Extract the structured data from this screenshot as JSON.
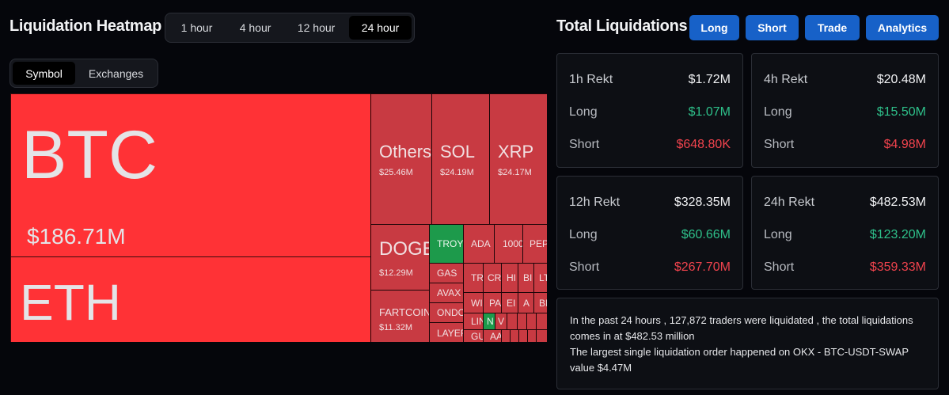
{
  "heatmap": {
    "title": "Liquidation Heatmap",
    "time_options": [
      "1 hour",
      "4 hour",
      "12 hour",
      "24 hour"
    ],
    "time_selected": "24 hour",
    "view_options": [
      "Symbol",
      "Exchanges"
    ],
    "view_selected": "Symbol"
  },
  "treemap": {
    "tiles": [
      {
        "symbol": "BTC",
        "value": "$186.71M"
      },
      {
        "symbol": "ETH",
        "value": ""
      },
      {
        "symbol": "Others",
        "value": "$25.46M"
      },
      {
        "symbol": "SOL",
        "value": "$24.19M"
      },
      {
        "symbol": "XRP",
        "value": "$24.17M"
      },
      {
        "symbol": "DOGE",
        "value": "$12.29M"
      },
      {
        "symbol": "FARTCOIN",
        "value": "$11.32M"
      },
      {
        "symbol": "TROY",
        "value": ""
      },
      {
        "symbol": "ADA",
        "value": ""
      },
      {
        "symbol": "1000",
        "value": ""
      },
      {
        "symbol": "PEP",
        "value": ""
      },
      {
        "symbol": "GAS",
        "value": ""
      },
      {
        "symbol": "AVAX",
        "value": ""
      },
      {
        "symbol": "ONDO",
        "value": ""
      },
      {
        "symbol": "LAYER",
        "value": ""
      },
      {
        "symbol": "TR",
        "value": ""
      },
      {
        "symbol": "CR",
        "value": ""
      },
      {
        "symbol": "HI",
        "value": ""
      },
      {
        "symbol": "BI",
        "value": ""
      },
      {
        "symbol": "LT",
        "value": ""
      },
      {
        "symbol": "WIF",
        "value": ""
      },
      {
        "symbol": "PA",
        "value": ""
      },
      {
        "symbol": "EI",
        "value": ""
      },
      {
        "symbol": "A",
        "value": ""
      },
      {
        "symbol": "BI",
        "value": ""
      },
      {
        "symbol": "LIN",
        "value": ""
      },
      {
        "symbol": "N",
        "value": ""
      },
      {
        "symbol": "V",
        "value": ""
      },
      {
        "symbol": "GU",
        "value": ""
      },
      {
        "symbol": "AA",
        "value": ""
      }
    ]
  },
  "total": {
    "title": "Total Liquidations",
    "buttons": [
      "Long",
      "Short",
      "Trade",
      "Analytics"
    ],
    "button_color": "#1761c8",
    "long_color": "#2ec08a",
    "short_color": "#f0434d",
    "cards": [
      {
        "label": "1h Rekt",
        "total": "$1.72M",
        "long_label": "Long",
        "long": "$1.07M",
        "short_label": "Short",
        "short": "$648.80K"
      },
      {
        "label": "4h Rekt",
        "total": "$20.48M",
        "long_label": "Long",
        "long": "$15.50M",
        "short_label": "Short",
        "short": "$4.98M"
      },
      {
        "label": "12h Rekt",
        "total": "$328.35M",
        "long_label": "Long",
        "long": "$60.66M",
        "short_label": "Short",
        "short": "$267.70M"
      },
      {
        "label": "24h Rekt",
        "total": "$482.53M",
        "long_label": "Long",
        "long": "$123.20M",
        "short_label": "Short",
        "short": "$359.33M"
      }
    ],
    "summary_line1": "In the past 24 hours , 127,872 traders were liquidated , the total liquidations comes in at $482.53 million",
    "summary_line2": "The largest single liquidation order happened on OKX - BTC-USDT-SWAP value $4.47M"
  }
}
